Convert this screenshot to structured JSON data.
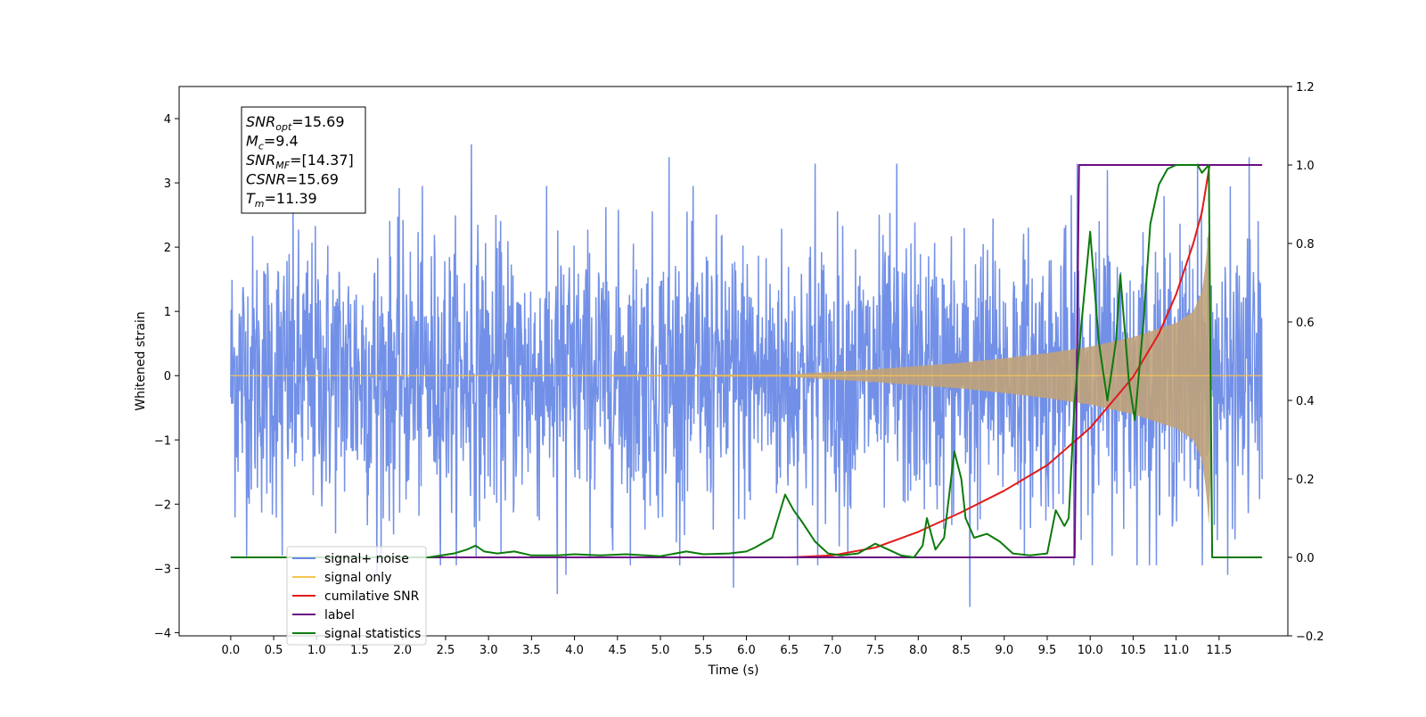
{
  "chart_data": {
    "type": "line",
    "xlabel": "Time (s)",
    "ylabel_left": "Whitened strain",
    "ylabel_right": "",
    "xlim": [
      -0.6,
      12.3
    ],
    "ylim_left": [
      -4.05,
      4.5
    ],
    "ylim_right": [
      -0.2,
      1.2
    ],
    "x_ticks": [
      0.0,
      0.5,
      1.0,
      1.5,
      2.0,
      2.5,
      3.0,
      3.5,
      4.0,
      4.5,
      5.0,
      5.5,
      6.0,
      6.5,
      7.0,
      7.5,
      8.0,
      8.5,
      9.0,
      9.5,
      10.0,
      10.5,
      11.0,
      11.5
    ],
    "x_tick_labels": [
      "0.0",
      "0.5",
      "1.0",
      "1.5",
      "2.0",
      "2.5",
      "3.0",
      "3.5",
      "4.0",
      "4.5",
      "5.0",
      "5.5",
      "6.0",
      "6.5",
      "7.0",
      "7.5",
      "8.0",
      "8.5",
      "9.0",
      "9.5",
      "10.0",
      "10.5",
      "11.0",
      "11.5"
    ],
    "y_left_ticks": [
      -4,
      -3,
      -2,
      -1,
      0,
      1,
      2,
      3,
      4
    ],
    "y_left_tick_labels": [
      "−4",
      "−3",
      "−2",
      "−1",
      "0",
      "1",
      "2",
      "3",
      "4"
    ],
    "y_right_ticks": [
      -0.2,
      0.0,
      0.2,
      0.4,
      0.6,
      0.8,
      1.0,
      1.2
    ],
    "y_right_tick_labels": [
      "−0.2",
      "0.0",
      "0.2",
      "0.4",
      "0.6",
      "0.8",
      "1.0",
      "1.2"
    ],
    "grid": false,
    "legend_position": "lower-left",
    "stats_box": [
      {
        "sym": "SNR",
        "sub": "opt",
        "val": "=15.69"
      },
      {
        "sym": "M",
        "sub": "c",
        "val": "=9.4"
      },
      {
        "sym": "SNR",
        "sub": "MF",
        "val": "=[14.37]"
      },
      {
        "sym": "CSNR",
        "sub": "",
        "val": "=15.69"
      },
      {
        "sym": "T",
        "sub": "m",
        "val": "=11.39"
      }
    ],
    "series": [
      {
        "name": "signal+ noise",
        "color": "#6a8ae6",
        "axis": "left",
        "kind": "noisy",
        "x_range": [
          0.0,
          12.0
        ],
        "typical_range": [
          -1.5,
          1.5
        ],
        "extreme_range": [
          -3.6,
          3.6
        ],
        "peaks": [
          [
            0.6,
            -2.8
          ],
          [
            1.7,
            -3.1
          ],
          [
            2.8,
            3.6
          ],
          [
            3.8,
            -3.4
          ],
          [
            3.9,
            -3.1
          ],
          [
            5.1,
            3.4
          ],
          [
            5.85,
            -3.3
          ],
          [
            6.8,
            3.3
          ],
          [
            7.75,
            3.3
          ],
          [
            8.6,
            -3.6
          ],
          [
            9.85,
            3.3
          ],
          [
            10.2,
            3.2
          ],
          [
            11.25,
            3.3
          ],
          [
            11.6,
            -3.1
          ],
          [
            11.85,
            3.4
          ]
        ]
      },
      {
        "name": "signal only",
        "color": "#f5c451",
        "axis": "left",
        "kind": "envelope",
        "fill": "#c0a27a",
        "x": [
          0.0,
          6.5,
          7.0,
          7.5,
          8.0,
          8.5,
          9.0,
          9.5,
          10.0,
          10.5,
          11.0,
          11.2,
          11.3,
          11.35,
          11.39,
          11.42,
          12.0
        ],
        "amp": [
          0.0,
          0.02,
          0.06,
          0.1,
          0.15,
          0.2,
          0.27,
          0.35,
          0.45,
          0.6,
          0.82,
          1.0,
          1.3,
          1.8,
          2.5,
          0.0,
          0.0
        ]
      },
      {
        "name": "cumilative SNR",
        "color": "#e01b1b",
        "axis": "right",
        "x": [
          0.0,
          6.5,
          7.0,
          7.5,
          8.0,
          8.5,
          9.0,
          9.5,
          10.0,
          10.5,
          10.8,
          11.0,
          11.2,
          11.3,
          11.39,
          11.5,
          12.0
        ],
        "y": [
          0.0,
          0.0,
          0.005,
          0.025,
          0.065,
          0.115,
          0.17,
          0.235,
          0.33,
          0.46,
          0.57,
          0.67,
          0.8,
          0.88,
          1.0,
          1.0,
          1.0
        ]
      },
      {
        "name": "label",
        "color": "#6a0d83",
        "axis": "right",
        "x": [
          0.0,
          9.82,
          9.87,
          11.35,
          11.39,
          12.0
        ],
        "y": [
          0.0,
          0.0,
          1.0,
          1.0,
          1.0,
          1.0
        ]
      },
      {
        "name": "signal statistics",
        "color": "#0c7a0c",
        "axis": "right",
        "x": [
          0.0,
          2.3,
          2.6,
          2.75,
          2.85,
          2.95,
          3.1,
          3.3,
          3.5,
          3.8,
          4.0,
          4.3,
          4.6,
          5.0,
          5.3,
          5.5,
          5.8,
          6.0,
          6.1,
          6.3,
          6.45,
          6.55,
          6.65,
          6.8,
          6.95,
          7.1,
          7.3,
          7.5,
          7.65,
          7.8,
          7.95,
          8.05,
          8.1,
          8.2,
          8.3,
          8.42,
          8.5,
          8.55,
          8.65,
          8.8,
          8.95,
          9.1,
          9.3,
          9.5,
          9.6,
          9.7,
          9.75,
          9.82,
          9.9,
          10.0,
          10.1,
          10.2,
          10.3,
          10.35,
          10.45,
          10.52,
          10.62,
          10.7,
          10.8,
          10.9,
          11.0,
          11.1,
          11.25,
          11.3,
          11.38,
          11.42,
          12.0
        ],
        "y": [
          0.0,
          0.0,
          0.01,
          0.02,
          0.03,
          0.015,
          0.01,
          0.015,
          0.005,
          0.005,
          0.008,
          0.005,
          0.008,
          0.003,
          0.015,
          0.008,
          0.01,
          0.015,
          0.025,
          0.05,
          0.16,
          0.12,
          0.09,
          0.04,
          0.01,
          0.005,
          0.01,
          0.035,
          0.02,
          0.005,
          0.0,
          0.03,
          0.1,
          0.02,
          0.05,
          0.27,
          0.2,
          0.1,
          0.05,
          0.06,
          0.04,
          0.01,
          0.005,
          0.01,
          0.12,
          0.08,
          0.1,
          0.4,
          0.6,
          0.83,
          0.55,
          0.4,
          0.55,
          0.72,
          0.45,
          0.35,
          0.6,
          0.85,
          0.95,
          0.99,
          1.0,
          1.0,
          1.0,
          0.98,
          1.0,
          0.0,
          0.0
        ]
      }
    ]
  }
}
